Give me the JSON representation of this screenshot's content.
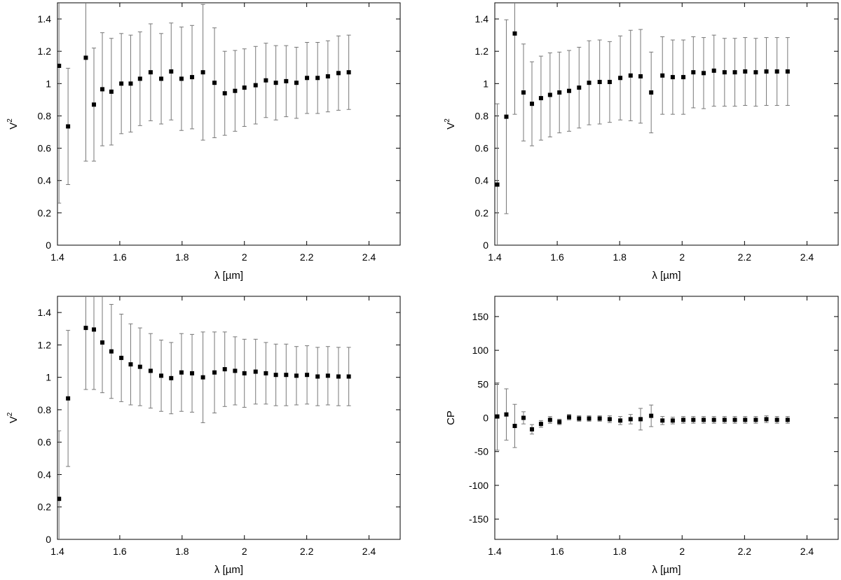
{
  "chart_data": [
    {
      "type": "scatter",
      "xlabel": "λ [µm]",
      "ylabel": "V",
      "ylabel_sup": "2",
      "xlim": [
        1.4,
        2.5
      ],
      "ylim": [
        0,
        1.5
      ],
      "xticks": [
        1.4,
        1.6,
        1.8,
        2,
        2.2,
        2.4
      ],
      "xtick_labels": [
        "1.4",
        "1.6",
        "1.8",
        "2",
        "2.2",
        "2.4"
      ],
      "yticks": [
        0,
        0.2,
        0.4,
        0.6,
        0.8,
        1,
        1.2,
        1.4
      ],
      "ytick_labels": [
        "0",
        "0.2",
        "0.4",
        "0.6",
        "0.8",
        "1",
        "1.2",
        "1.4"
      ],
      "grid": false,
      "x": [
        1.405,
        1.434,
        1.491,
        1.517,
        1.544,
        1.573,
        1.605,
        1.635,
        1.665,
        1.699,
        1.733,
        1.765,
        1.798,
        1.832,
        1.867,
        1.904,
        1.937,
        1.97,
        2.0,
        2.036,
        2.069,
        2.101,
        2.134,
        2.167,
        2.201,
        2.235,
        2.268,
        2.302,
        2.335
      ],
      "y": [
        1.11,
        0.735,
        1.16,
        0.87,
        0.965,
        0.95,
        1.0,
        1.0,
        1.03,
        1.07,
        1.03,
        1.075,
        1.03,
        1.04,
        1.07,
        1.005,
        0.94,
        0.955,
        0.975,
        0.99,
        1.02,
        1.005,
        1.015,
        1.005,
        1.035,
        1.035,
        1.045,
        1.065,
        1.07
      ],
      "y_err": [
        0.85,
        0.36,
        0.64,
        0.35,
        0.35,
        0.33,
        0.31,
        0.3,
        0.29,
        0.3,
        0.28,
        0.3,
        0.32,
        0.32,
        0.42,
        0.34,
        0.26,
        0.25,
        0.24,
        0.24,
        0.23,
        0.23,
        0.22,
        0.22,
        0.22,
        0.22,
        0.22,
        0.23,
        0.23
      ]
    },
    {
      "type": "scatter",
      "xlabel": "λ [µm]",
      "ylabel": "V",
      "ylabel_sup": "2",
      "xlim": [
        1.4,
        2.5
      ],
      "ylim": [
        0,
        1.5
      ],
      "xticks": [
        1.4,
        1.6,
        1.8,
        2,
        2.2,
        2.4
      ],
      "xtick_labels": [
        "1.4",
        "1.6",
        "1.8",
        "2",
        "2.2",
        "2.4"
      ],
      "yticks": [
        0,
        0.2,
        0.4,
        0.6,
        0.8,
        1,
        1.2,
        1.4
      ],
      "ytick_labels": [
        "0",
        "0.2",
        "0.4",
        "0.6",
        "0.8",
        "1",
        "1.2",
        "1.4"
      ],
      "grid": false,
      "x": [
        1.408,
        1.437,
        1.464,
        1.492,
        1.519,
        1.548,
        1.577,
        1.607,
        1.638,
        1.67,
        1.702,
        1.736,
        1.768,
        1.802,
        1.835,
        1.867,
        1.901,
        1.937,
        1.97,
        2.004,
        2.036,
        2.069,
        2.102,
        2.136,
        2.169,
        2.202,
        2.236,
        2.27,
        2.304,
        2.338
      ],
      "y": [
        0.375,
        0.795,
        1.31,
        0.945,
        0.875,
        0.91,
        0.93,
        0.945,
        0.955,
        0.975,
        1.005,
        1.01,
        1.01,
        1.035,
        1.05,
        1.045,
        0.945,
        1.05,
        1.04,
        1.04,
        1.07,
        1.065,
        1.08,
        1.07,
        1.07,
        1.075,
        1.07,
        1.075,
        1.075,
        1.075
      ],
      "y_err": [
        0.5,
        0.6,
        0.5,
        0.3,
        0.26,
        0.26,
        0.26,
        0.25,
        0.25,
        0.25,
        0.26,
        0.26,
        0.25,
        0.26,
        0.28,
        0.29,
        0.25,
        0.24,
        0.23,
        0.23,
        0.22,
        0.22,
        0.22,
        0.21,
        0.21,
        0.21,
        0.21,
        0.21,
        0.21,
        0.21
      ]
    },
    {
      "type": "scatter",
      "xlabel": "λ [µm]",
      "ylabel": "V",
      "ylabel_sup": "2",
      "xlim": [
        1.4,
        2.5
      ],
      "ylim": [
        0,
        1.5
      ],
      "xticks": [
        1.4,
        1.6,
        1.8,
        2,
        2.2,
        2.4
      ],
      "xtick_labels": [
        "1.4",
        "1.6",
        "1.8",
        "2",
        "2.2",
        "2.4"
      ],
      "yticks": [
        0,
        0.2,
        0.4,
        0.6,
        0.8,
        1,
        1.2,
        1.4
      ],
      "ytick_labels": [
        "0",
        "0.2",
        "0.4",
        "0.6",
        "0.8",
        "1",
        "1.2",
        "1.4"
      ],
      "grid": false,
      "x": [
        1.405,
        1.434,
        1.491,
        1.517,
        1.544,
        1.573,
        1.605,
        1.635,
        1.665,
        1.699,
        1.733,
        1.765,
        1.798,
        1.832,
        1.867,
        1.904,
        1.937,
        1.97,
        2.0,
        2.036,
        2.069,
        2.101,
        2.134,
        2.167,
        2.201,
        2.235,
        2.268,
        2.302,
        2.335
      ],
      "y": [
        0.25,
        0.87,
        1.305,
        1.295,
        1.215,
        1.16,
        1.12,
        1.08,
        1.065,
        1.04,
        1.01,
        0.995,
        1.03,
        1.025,
        1.0,
        1.03,
        1.05,
        1.04,
        1.025,
        1.035,
        1.025,
        1.015,
        1.015,
        1.01,
        1.015,
        1.005,
        1.01,
        1.005,
        1.005
      ],
      "y_err": [
        0.42,
        0.42,
        0.38,
        0.37,
        0.31,
        0.29,
        0.27,
        0.25,
        0.24,
        0.23,
        0.22,
        0.22,
        0.24,
        0.24,
        0.28,
        0.25,
        0.23,
        0.21,
        0.21,
        0.2,
        0.19,
        0.19,
        0.19,
        0.18,
        0.18,
        0.18,
        0.18,
        0.18,
        0.18
      ]
    },
    {
      "type": "scatter",
      "xlabel": "λ [µm]",
      "ylabel": "CP",
      "ylabel_sup": "",
      "xlim": [
        1.4,
        2.5
      ],
      "ylim": [
        -180,
        180
      ],
      "xticks": [
        1.4,
        1.6,
        1.8,
        2,
        2.2,
        2.4
      ],
      "xtick_labels": [
        "1.4",
        "1.6",
        "1.8",
        "2",
        "2.2",
        "2.4"
      ],
      "yticks": [
        -150,
        -100,
        -50,
        0,
        50,
        100,
        150
      ],
      "ytick_labels": [
        "-150",
        "-100",
        "-50",
        "0",
        "50",
        "100",
        "150"
      ],
      "grid": false,
      "x": [
        1.408,
        1.437,
        1.464,
        1.492,
        1.519,
        1.548,
        1.577,
        1.607,
        1.638,
        1.67,
        1.702,
        1.736,
        1.768,
        1.802,
        1.835,
        1.867,
        1.901,
        1.937,
        1.97,
        2.004,
        2.036,
        2.069,
        2.102,
        2.136,
        2.169,
        2.202,
        2.236,
        2.27,
        2.304,
        2.338
      ],
      "y": [
        2,
        5,
        -12,
        0,
        -17,
        -9,
        -3,
        -6,
        1,
        -1,
        -1,
        -1,
        -2,
        -4,
        -2,
        -2,
        3,
        -4,
        -4,
        -3,
        -3,
        -3,
        -3,
        -3,
        -3,
        -3,
        -3,
        -2,
        -3,
        -3
      ],
      "y_err": [
        50,
        38,
        32,
        9,
        7,
        5,
        5,
        4,
        4,
        4,
        4,
        4,
        5,
        6,
        7,
        16,
        16,
        6,
        5,
        5,
        5,
        5,
        5,
        5,
        5,
        5,
        5,
        5,
        5,
        5
      ]
    }
  ]
}
